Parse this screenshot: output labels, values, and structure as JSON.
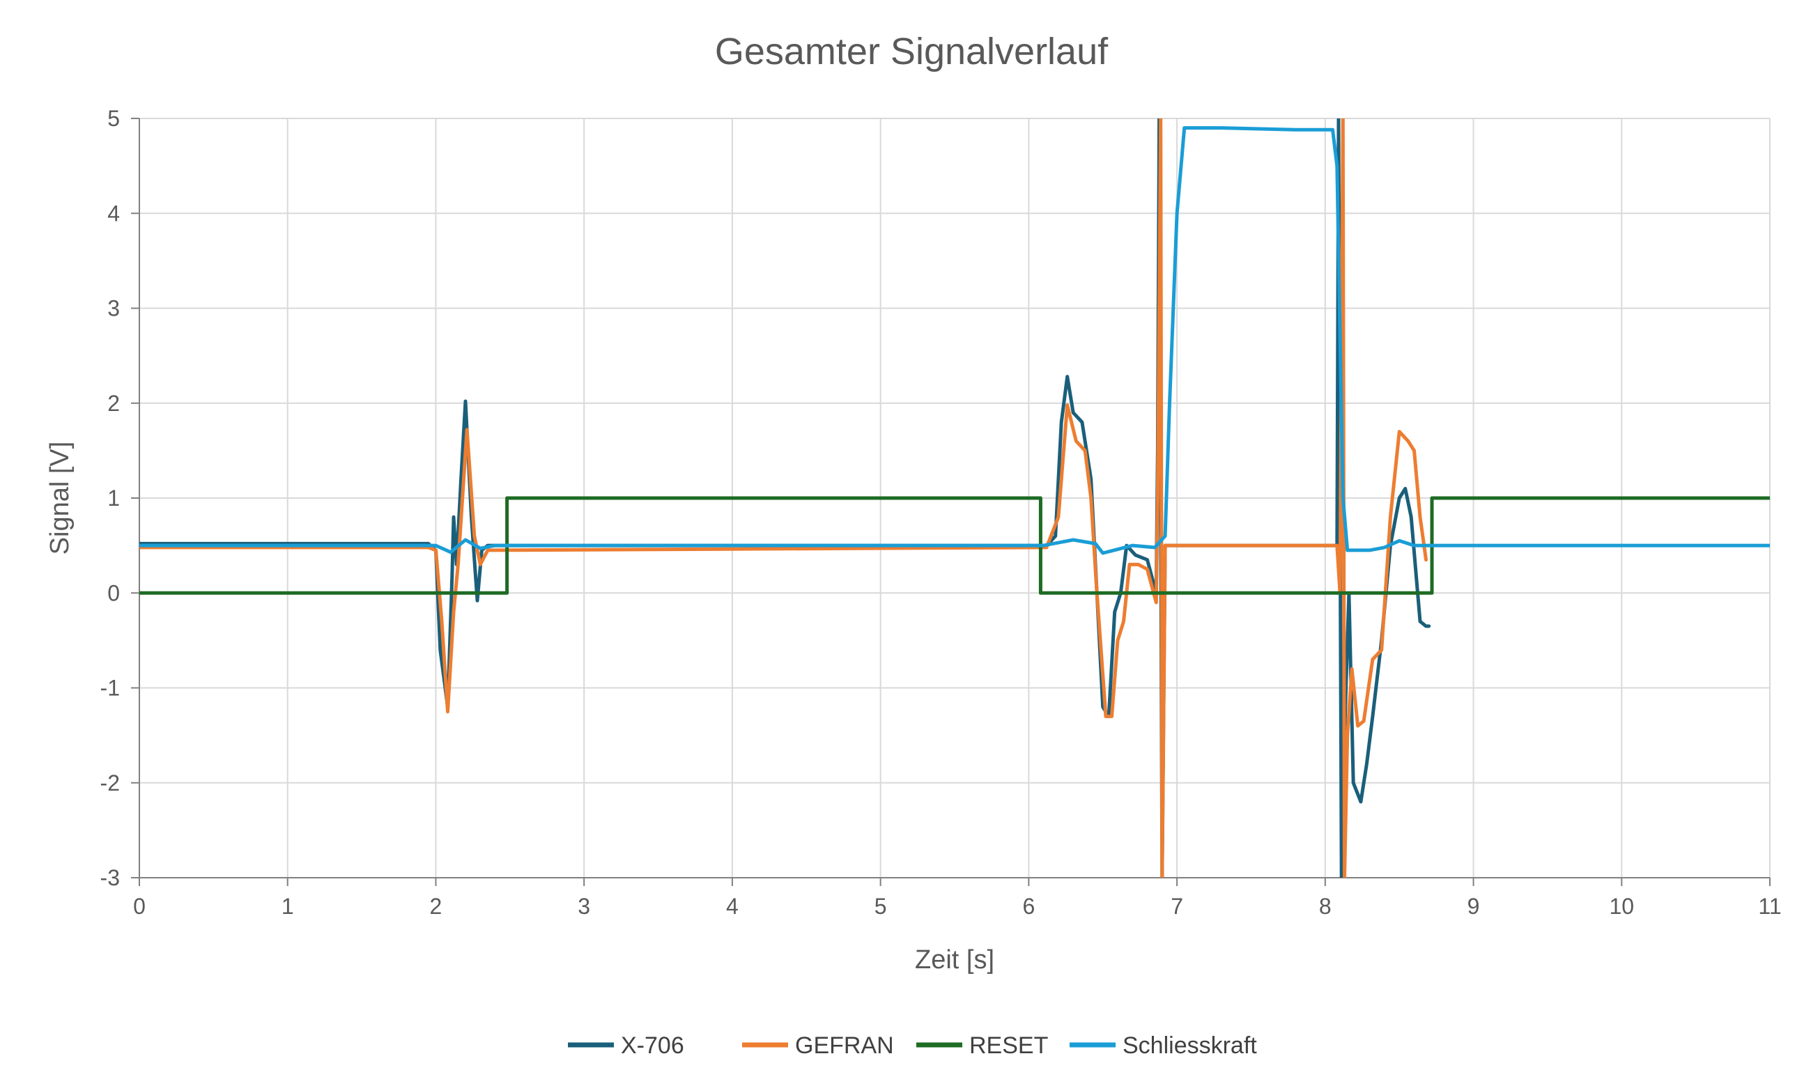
{
  "chart_data": {
    "type": "line",
    "title": "Gesamter Signalverlauf",
    "xlabel": "Zeit [s]",
    "ylabel": "Signal [V]",
    "xlim": [
      0,
      11
    ],
    "ylim": [
      -3,
      5
    ],
    "x_ticks": [
      "0",
      "1",
      "2",
      "3",
      "4",
      "5",
      "6",
      "7",
      "8",
      "9",
      "10",
      "11"
    ],
    "y_ticks": [
      "5",
      "4",
      "3",
      "2",
      "1",
      "0",
      "-1",
      "-2",
      "-3"
    ],
    "grid": true,
    "legend_position": "bottom",
    "series": [
      {
        "name": "X-706",
        "color": "#1a5f7a",
        "points": [
          [
            0,
            0.52
          ],
          [
            1.95,
            0.52
          ],
          [
            2.0,
            0.45
          ],
          [
            2.03,
            -0.6
          ],
          [
            2.08,
            -1.2
          ],
          [
            2.11,
            0.2
          ],
          [
            2.12,
            0.8
          ],
          [
            2.14,
            0.3
          ],
          [
            2.17,
            1.2
          ],
          [
            2.2,
            2.02
          ],
          [
            2.24,
            0.8
          ],
          [
            2.28,
            -0.08
          ],
          [
            2.31,
            0.45
          ],
          [
            2.35,
            0.5
          ],
          [
            6.12,
            0.5
          ],
          [
            6.18,
            0.6
          ],
          [
            6.22,
            1.8
          ],
          [
            6.26,
            2.28
          ],
          [
            6.3,
            1.9
          ],
          [
            6.36,
            1.8
          ],
          [
            6.42,
            1.2
          ],
          [
            6.46,
            0.0
          ],
          [
            6.5,
            -1.2
          ],
          [
            6.54,
            -1.3
          ],
          [
            6.58,
            -0.2
          ],
          [
            6.62,
            0.0
          ],
          [
            6.66,
            0.5
          ],
          [
            6.72,
            0.4
          ],
          [
            6.8,
            0.35
          ],
          [
            6.86,
            0.0
          ],
          [
            6.87,
            1.5
          ],
          [
            6.88,
            5.0
          ],
          [
            6.9,
            -3.0
          ],
          [
            6.92,
            0.5
          ],
          [
            8.08,
            0.5
          ],
          [
            8.09,
            5.0
          ],
          [
            8.11,
            -3.0
          ],
          [
            8.13,
            -1.5
          ],
          [
            8.16,
            0.0
          ],
          [
            8.19,
            -2.0
          ],
          [
            8.24,
            -2.2
          ],
          [
            8.28,
            -1.8
          ],
          [
            8.32,
            -1.3
          ],
          [
            8.38,
            -0.5
          ],
          [
            8.44,
            0.5
          ],
          [
            8.5,
            1.0
          ],
          [
            8.54,
            1.1
          ],
          [
            8.58,
            0.8
          ],
          [
            8.64,
            -0.3
          ],
          [
            8.68,
            -0.35
          ],
          [
            8.7,
            -0.35
          ]
        ]
      },
      {
        "name": "GEFRAN",
        "color": "#ed7d31",
        "points": [
          [
            0,
            0.48
          ],
          [
            1.95,
            0.48
          ],
          [
            2.0,
            0.45
          ],
          [
            2.04,
            -0.3
          ],
          [
            2.08,
            -1.25
          ],
          [
            2.12,
            -0.2
          ],
          [
            2.15,
            0.3
          ],
          [
            2.18,
            1.0
          ],
          [
            2.21,
            1.72
          ],
          [
            2.26,
            0.6
          ],
          [
            2.3,
            0.3
          ],
          [
            2.35,
            0.45
          ],
          [
            6.12,
            0.48
          ],
          [
            6.2,
            0.8
          ],
          [
            6.26,
            1.98
          ],
          [
            6.32,
            1.6
          ],
          [
            6.38,
            1.5
          ],
          [
            6.42,
            1.0
          ],
          [
            6.46,
            0.0
          ],
          [
            6.52,
            -1.3
          ],
          [
            6.56,
            -1.3
          ],
          [
            6.6,
            -0.5
          ],
          [
            6.64,
            -0.3
          ],
          [
            6.68,
            0.3
          ],
          [
            6.74,
            0.3
          ],
          [
            6.8,
            0.25
          ],
          [
            6.86,
            -0.1
          ],
          [
            6.87,
            1.0
          ],
          [
            6.89,
            5.0
          ],
          [
            6.9,
            -3.0
          ],
          [
            6.92,
            0.5
          ],
          [
            8.08,
            0.5
          ],
          [
            8.1,
            0.0
          ],
          [
            8.12,
            5.0
          ],
          [
            8.13,
            -3.0
          ],
          [
            8.15,
            -1.5
          ],
          [
            8.18,
            -0.8
          ],
          [
            8.22,
            -1.4
          ],
          [
            8.26,
            -1.35
          ],
          [
            8.32,
            -0.7
          ],
          [
            8.38,
            -0.6
          ],
          [
            8.44,
            0.8
          ],
          [
            8.5,
            1.7
          ],
          [
            8.56,
            1.6
          ],
          [
            8.6,
            1.5
          ],
          [
            8.64,
            0.8
          ],
          [
            8.68,
            0.35
          ]
        ]
      },
      {
        "name": "RESET",
        "color": "#1e6b24",
        "points": [
          [
            0,
            0
          ],
          [
            2.48,
            0
          ],
          [
            2.48,
            1
          ],
          [
            6.08,
            1
          ],
          [
            6.08,
            0
          ],
          [
            8.72,
            0
          ],
          [
            8.72,
            1
          ],
          [
            11,
            1
          ]
        ]
      },
      {
        "name": "Schliesskraft",
        "color": "#1a9dd6",
        "points": [
          [
            0,
            0.5
          ],
          [
            2.0,
            0.5
          ],
          [
            2.1,
            0.43
          ],
          [
            2.2,
            0.56
          ],
          [
            2.3,
            0.47
          ],
          [
            2.4,
            0.5
          ],
          [
            6.1,
            0.5
          ],
          [
            6.3,
            0.56
          ],
          [
            6.45,
            0.52
          ],
          [
            6.5,
            0.42
          ],
          [
            6.6,
            0.46
          ],
          [
            6.7,
            0.5
          ],
          [
            6.85,
            0.48
          ],
          [
            6.92,
            0.6
          ],
          [
            6.95,
            2.0
          ],
          [
            7.0,
            4.0
          ],
          [
            7.05,
            4.9
          ],
          [
            7.3,
            4.9
          ],
          [
            7.8,
            4.88
          ],
          [
            8.02,
            4.88
          ],
          [
            8.05,
            4.88
          ],
          [
            8.08,
            4.5
          ],
          [
            8.12,
            1.0
          ],
          [
            8.15,
            0.45
          ],
          [
            8.3,
            0.45
          ],
          [
            8.4,
            0.48
          ],
          [
            8.5,
            0.55
          ],
          [
            8.6,
            0.5
          ],
          [
            8.8,
            0.5
          ],
          [
            11,
            0.5
          ]
        ]
      }
    ]
  }
}
